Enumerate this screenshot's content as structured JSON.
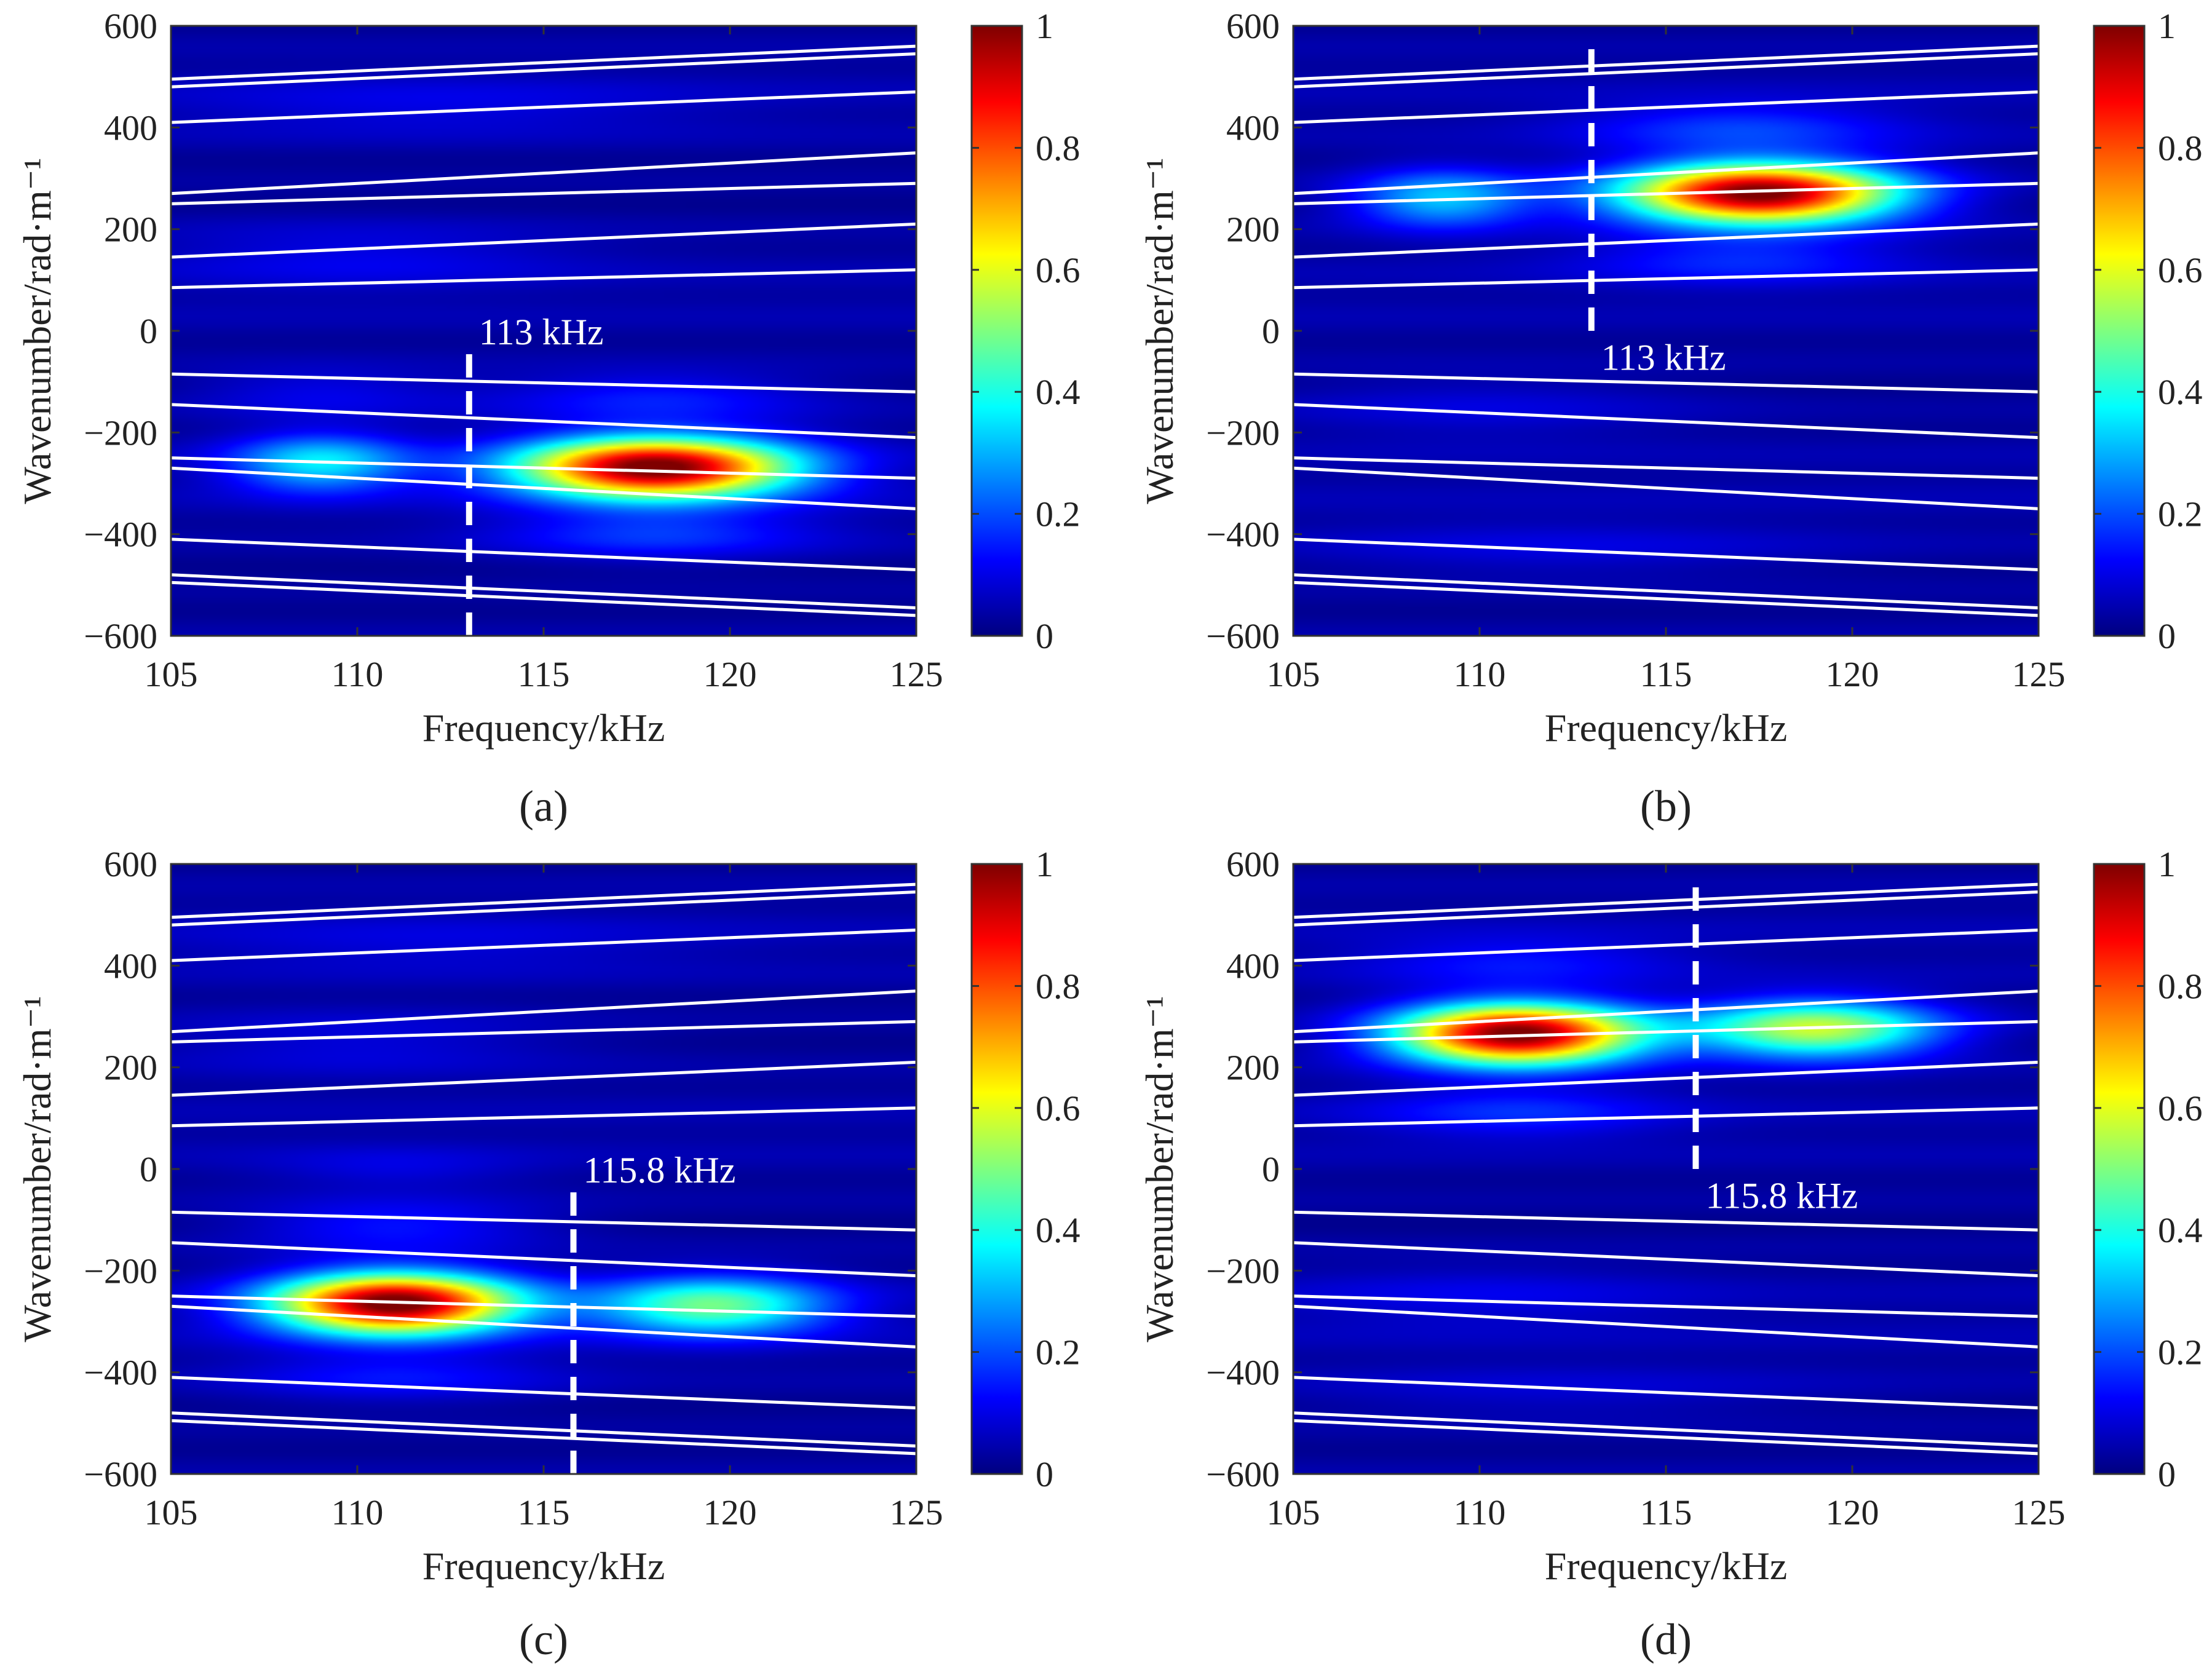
{
  "colors": {
    "colormap": [
      "#00007f",
      "#0000ff",
      "#007fff",
      "#00ffff",
      "#7fff7f",
      "#ffff00",
      "#ff7f00",
      "#ff0000",
      "#7f0000"
    ],
    "curve": "#ffffff",
    "marker": "#ffffff",
    "axis": "#333333"
  },
  "chart_data": [
    {
      "type": "heatmap",
      "label": "(a)",
      "xlabel": "Frequency/kHz",
      "ylabel": "Wavenumber/rad·m⁻¹",
      "xlim": [
        105,
        125
      ],
      "ylim": [
        -600,
        600
      ],
      "xticks": [
        105,
        110,
        115,
        120,
        125
      ],
      "yticks": [
        -600,
        -400,
        -200,
        0,
        200,
        400,
        600
      ],
      "colorbar": {
        "range": [
          0,
          1
        ],
        "ticks": [
          0,
          0.2,
          0.4,
          0.6,
          0.8,
          1
        ],
        "ticklabels": [
          "0",
          "0.2",
          "0.4",
          "0.6",
          "0.8",
          "1"
        ]
      },
      "marker_line": {
        "x": 113,
        "y_range": [
          -600,
          -40
        ],
        "label": "113 kHz",
        "label_y": 0
      },
      "blobs": [
        {
          "f": 118,
          "k": -270,
          "sf": 2.6,
          "sk": 42,
          "amp": 1.0
        },
        {
          "f": 109,
          "k": -260,
          "sf": 1.7,
          "sk": 40,
          "amp": 0.32
        },
        {
          "f": 118,
          "k": -400,
          "sf": 3.0,
          "sk": 35,
          "amp": 0.14
        },
        {
          "f": 118,
          "k": -130,
          "sf": 3.0,
          "sk": 35,
          "amp": 0.12
        },
        {
          "f": 109,
          "k": -120,
          "sf": 2.5,
          "sk": 35,
          "amp": 0.08
        },
        {
          "f": 110,
          "k": 150,
          "sf": 4.0,
          "sk": 45,
          "amp": 0.07
        },
        {
          "f": 112,
          "k": 440,
          "sf": 5.0,
          "sk": 40,
          "amp": 0.06
        }
      ]
    },
    {
      "type": "heatmap",
      "label": "(b)",
      "xlabel": "Frequency/kHz",
      "ylabel": "Wavenumber/rad·m⁻¹",
      "xlim": [
        105,
        125
      ],
      "ylim": [
        -600,
        600
      ],
      "xticks": [
        105,
        110,
        115,
        120,
        125
      ],
      "yticks": [
        -600,
        -400,
        -200,
        0,
        200,
        400,
        600
      ],
      "colorbar": {
        "range": [
          0,
          1
        ],
        "ticks": [
          0,
          0.2,
          0.4,
          0.6,
          0.8,
          1
        ],
        "ticklabels": [
          "0",
          "0.2",
          "0.4",
          "0.6",
          "0.8",
          "1"
        ]
      },
      "marker_line": {
        "x": 113,
        "y_range": [
          0,
          560
        ],
        "label": "113 kHz",
        "label_y": -50
      },
      "blobs": [
        {
          "f": 117.5,
          "k": 270,
          "sf": 2.6,
          "sk": 42,
          "amp": 1.0
        },
        {
          "f": 109,
          "k": 260,
          "sf": 1.7,
          "sk": 40,
          "amp": 0.3
        },
        {
          "f": 117,
          "k": 400,
          "sf": 3.0,
          "sk": 35,
          "amp": 0.14
        },
        {
          "f": 117,
          "k": 140,
          "sf": 3.0,
          "sk": 35,
          "amp": 0.12
        },
        {
          "f": 110,
          "k": -150,
          "sf": 4.0,
          "sk": 45,
          "amp": 0.06
        },
        {
          "f": 112,
          "k": -430,
          "sf": 5.0,
          "sk": 40,
          "amp": 0.06
        }
      ]
    },
    {
      "type": "heatmap",
      "label": "(c)",
      "xlabel": "Frequency/kHz",
      "ylabel": "Wavenumber/rad·m⁻¹",
      "xlim": [
        105,
        125
      ],
      "ylim": [
        -600,
        600
      ],
      "xticks": [
        105,
        110,
        115,
        120,
        125
      ],
      "yticks": [
        -600,
        -400,
        -200,
        0,
        200,
        400,
        600
      ],
      "colorbar": {
        "range": [
          0,
          1
        ],
        "ticks": [
          0,
          0.2,
          0.4,
          0.6,
          0.8,
          1
        ],
        "ticklabels": [
          "0",
          "0.2",
          "0.4",
          "0.6",
          "0.8",
          "1"
        ]
      },
      "marker_line": {
        "x": 115.8,
        "y_range": [
          -600,
          -40
        ],
        "label": "115.8 kHz",
        "label_y": 0
      },
      "blobs": [
        {
          "f": 111,
          "k": -265,
          "sf": 2.3,
          "sk": 42,
          "amp": 1.0
        },
        {
          "f": 119.5,
          "k": -270,
          "sf": 2.2,
          "sk": 40,
          "amp": 0.45
        },
        {
          "f": 111,
          "k": -110,
          "sf": 2.8,
          "sk": 35,
          "amp": 0.12
        },
        {
          "f": 111,
          "k": -410,
          "sf": 3.0,
          "sk": 35,
          "amp": 0.1
        },
        {
          "f": 111,
          "k": 0,
          "sf": 2.5,
          "sk": 30,
          "amp": 0.06
        },
        {
          "f": 110,
          "k": 250,
          "sf": 4.0,
          "sk": 45,
          "amp": 0.07
        },
        {
          "f": 112,
          "k": 440,
          "sf": 5.0,
          "sk": 40,
          "amp": 0.05
        }
      ]
    },
    {
      "type": "heatmap",
      "label": "(d)",
      "xlabel": "Frequency/kHz",
      "ylabel": "Wavenumber/rad·m⁻¹",
      "xlim": [
        105,
        125
      ],
      "ylim": [
        -600,
        600
      ],
      "xticks": [
        105,
        110,
        115,
        120,
        125
      ],
      "yticks": [
        -600,
        -400,
        -200,
        0,
        200,
        400,
        600
      ],
      "colorbar": {
        "range": [
          0,
          1
        ],
        "ticks": [
          0,
          0.2,
          0.4,
          0.6,
          0.8,
          1
        ],
        "ticklabels": [
          "0",
          "0.2",
          "0.4",
          "0.6",
          "0.8",
          "1"
        ]
      },
      "marker_line": {
        "x": 115.8,
        "y_range": [
          0,
          560
        ],
        "label": "115.8 kHz",
        "label_y": -50
      },
      "blobs": [
        {
          "f": 111,
          "k": 265,
          "sf": 2.3,
          "sk": 42,
          "amp": 1.0
        },
        {
          "f": 119,
          "k": 275,
          "sf": 2.3,
          "sk": 40,
          "amp": 0.55
        },
        {
          "f": 111,
          "k": 110,
          "sf": 2.8,
          "sk": 35,
          "amp": 0.12
        },
        {
          "f": 111,
          "k": 410,
          "sf": 3.0,
          "sk": 35,
          "amp": 0.1
        },
        {
          "f": 110,
          "k": -250,
          "sf": 4.0,
          "sk": 45,
          "amp": 0.06
        },
        {
          "f": 112,
          "k": -440,
          "sf": 5.0,
          "sk": 40,
          "amp": 0.05
        }
      ]
    }
  ],
  "dispersion_curves": [
    {
      "k105": 480,
      "k125": 545
    },
    {
      "k105": 495,
      "k125": 560
    },
    {
      "k105": 410,
      "k125": 470
    },
    {
      "k105": 270,
      "k125": 350
    },
    {
      "k105": 250,
      "k125": 290
    },
    {
      "k105": 145,
      "k125": 210
    },
    {
      "k105": 85,
      "k125": 120
    },
    {
      "k105": -85,
      "k125": -120
    },
    {
      "k105": -145,
      "k125": -210
    },
    {
      "k105": -250,
      "k125": -290
    },
    {
      "k105": -270,
      "k125": -350
    },
    {
      "k105": -410,
      "k125": -470
    },
    {
      "k105": -480,
      "k125": -545
    },
    {
      "k105": -495,
      "k125": -560
    }
  ]
}
